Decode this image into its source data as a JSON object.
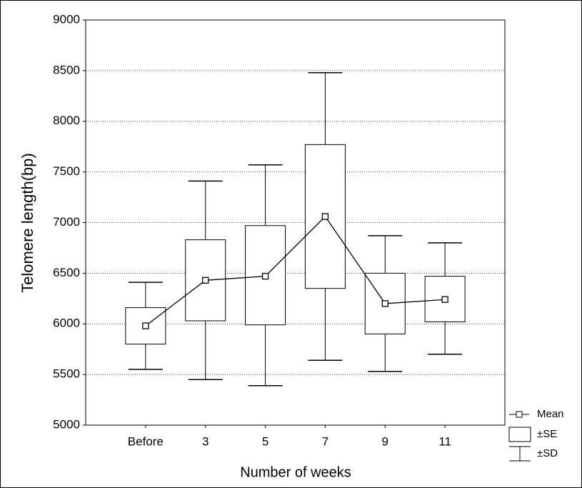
{
  "chart_data": {
    "type": "box",
    "y_label": "Telomere length(bp)",
    "x_label": "Number of weeks",
    "categories": [
      "Before",
      "3",
      "5",
      "7",
      "9",
      "11"
    ],
    "mean": {
      "name": "Mean",
      "values": [
        5980,
        6430,
        6470,
        7060,
        6200,
        6240
      ]
    },
    "se": {
      "name": "±SE",
      "low": [
        5800,
        6030,
        5990,
        6350,
        5900,
        6020
      ],
      "high": [
        6160,
        6830,
        6970,
        7770,
        6500,
        6470
      ]
    },
    "sd": {
      "name": "±SD",
      "low": [
        5550,
        5450,
        5390,
        5640,
        5530,
        5700
      ],
      "high": [
        6410,
        7410,
        7570,
        8480,
        6870,
        6800
      ]
    },
    "ylim": [
      5000,
      9000
    ],
    "yticks": [
      5000,
      5500,
      6000,
      6500,
      7000,
      7500,
      8000,
      8500,
      9000
    ],
    "grid": true,
    "legend": "bottom-right"
  }
}
